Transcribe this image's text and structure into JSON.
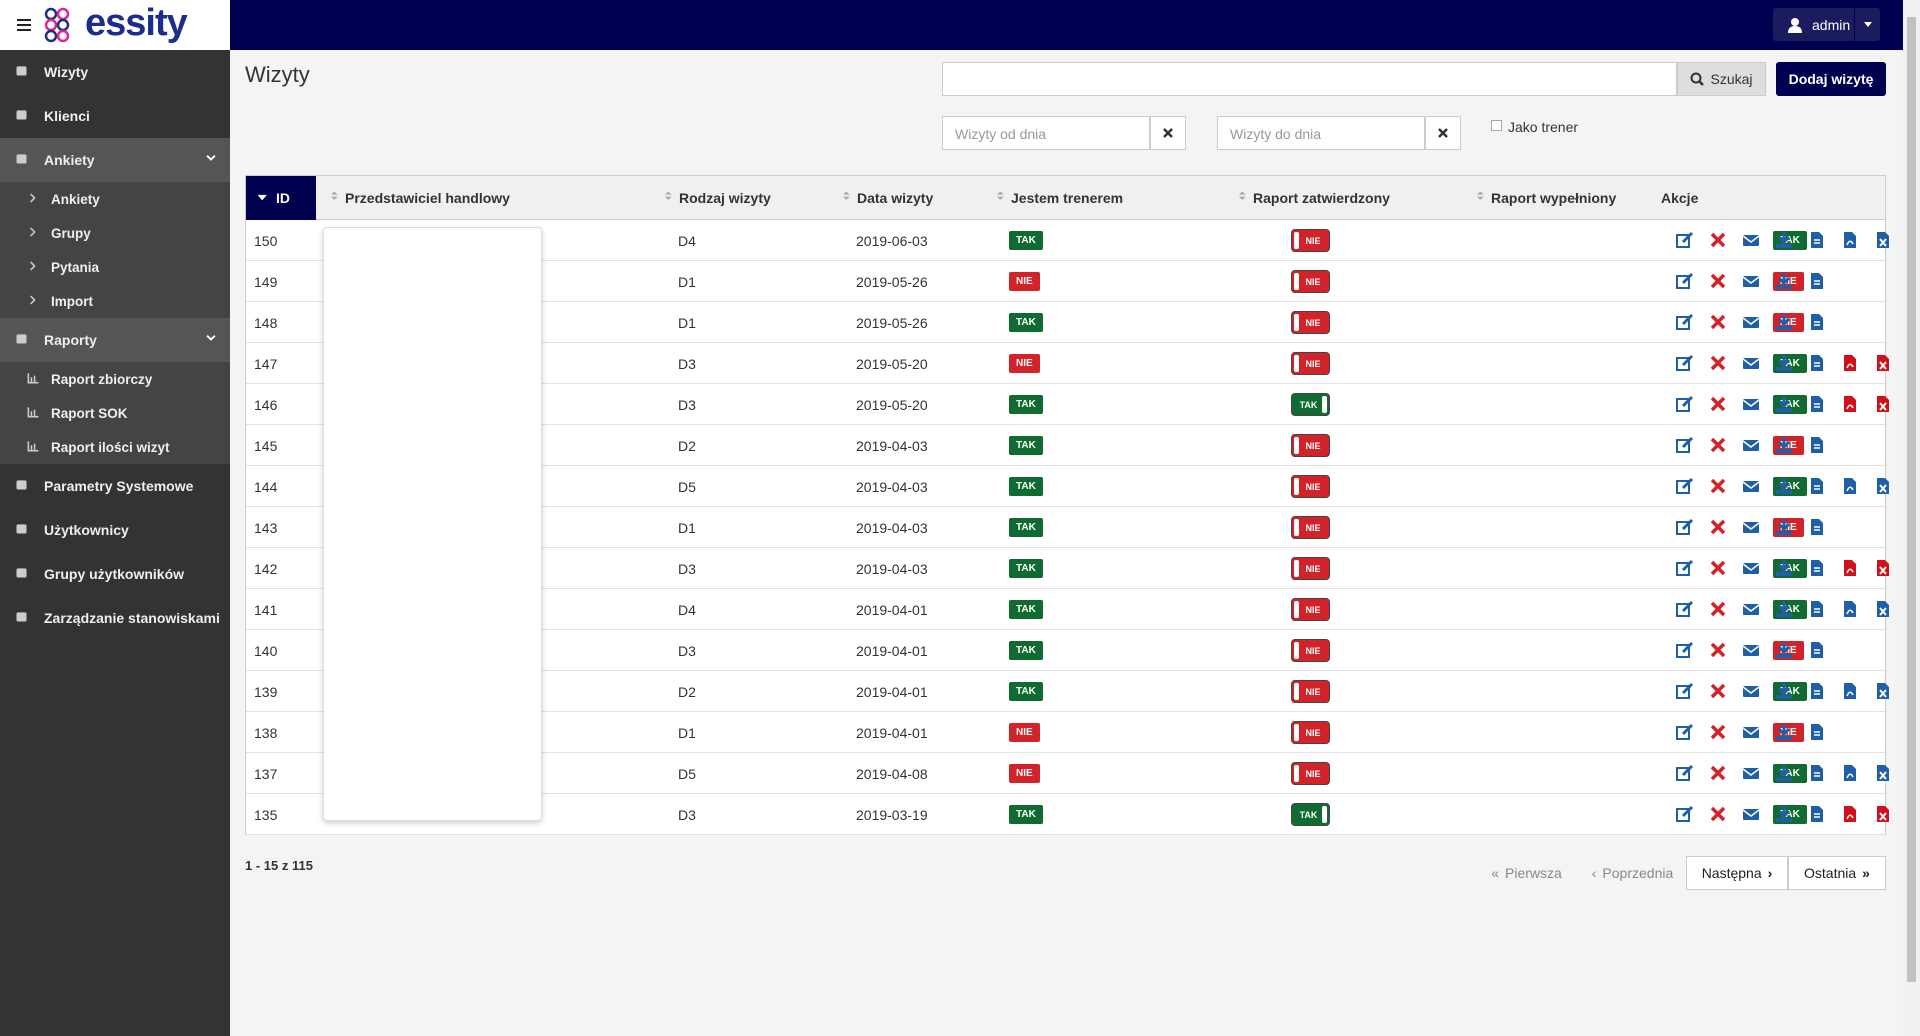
{
  "brand": "essity",
  "user": "admin",
  "sidebar": [
    {
      "label": "Wizyty"
    },
    {
      "label": "Klienci"
    },
    {
      "label": "Ankiety",
      "children": [
        "Ankiety",
        "Grupy",
        "Pytania",
        "Import"
      ]
    },
    {
      "label": "Raporty",
      "children": [
        "Raport zbiorczy",
        "Raport SOK",
        "Raport ilości wizyt"
      ]
    },
    {
      "label": "Parametry Systemowe"
    },
    {
      "label": "Użytkownicy"
    },
    {
      "label": "Grupy użytkowników"
    },
    {
      "label": "Zarządzanie stanowiskami"
    }
  ],
  "page_title": "Wizyty",
  "search": {
    "button": "Szukaj",
    "add_button": "Dodaj wizytę"
  },
  "filters": {
    "from_placeholder": "Wizyty od dnia",
    "to_placeholder": "Wizyty do dnia",
    "trainer_checkbox": "Jako trener"
  },
  "table": {
    "columns": [
      "ID",
      "Przedstawiciel handlowy",
      "Rodzaj wizyty",
      "Data wizyty",
      "Jestem trenerem",
      "Raport zatwierdzony",
      "Raport wypełniony",
      "Akcje"
    ],
    "rows": [
      {
        "id": 150,
        "type": "D4",
        "date": "2019-06-03",
        "trainer": "TAK",
        "approved": "NIE",
        "filled": "TAK",
        "report_icons_color": "#1f5fa8"
      },
      {
        "id": 149,
        "type": "D1",
        "date": "2019-05-26",
        "trainer": "NIE",
        "approved": "NIE",
        "filled": "NIE",
        "report_icons_color": null
      },
      {
        "id": 148,
        "type": "D1",
        "date": "2019-05-26",
        "trainer": "TAK",
        "approved": "NIE",
        "filled": "NIE",
        "report_icons_color": null
      },
      {
        "id": 147,
        "type": "D3",
        "date": "2019-05-20",
        "trainer": "NIE",
        "approved": "NIE",
        "filled": "TAK",
        "report_icons_color": "#d0111b"
      },
      {
        "id": 146,
        "type": "D3",
        "date": "2019-05-20",
        "trainer": "TAK",
        "approved": "TAK",
        "filled": "TAK",
        "report_icons_color": "#d0111b"
      },
      {
        "id": 145,
        "type": "D2",
        "date": "2019-04-03",
        "trainer": "TAK",
        "approved": "NIE",
        "filled": "NIE",
        "report_icons_color": null
      },
      {
        "id": 144,
        "type": "D5",
        "date": "2019-04-03",
        "trainer": "TAK",
        "approved": "NIE",
        "filled": "TAK",
        "report_icons_color": "#1f5fa8"
      },
      {
        "id": 143,
        "type": "D1",
        "date": "2019-04-03",
        "trainer": "TAK",
        "approved": "NIE",
        "filled": "NIE",
        "report_icons_color": null
      },
      {
        "id": 142,
        "type": "D3",
        "date": "2019-04-03",
        "trainer": "TAK",
        "approved": "NIE",
        "filled": "TAK",
        "report_icons_color": "#d0111b"
      },
      {
        "id": 141,
        "type": "D4",
        "date": "2019-04-01",
        "trainer": "TAK",
        "approved": "NIE",
        "filled": "TAK",
        "report_icons_color": "#1f5fa8"
      },
      {
        "id": 140,
        "type": "D3",
        "date": "2019-04-01",
        "trainer": "TAK",
        "approved": "NIE",
        "filled": "NIE",
        "report_icons_color": null
      },
      {
        "id": 139,
        "type": "D2",
        "date": "2019-04-01",
        "trainer": "TAK",
        "approved": "NIE",
        "filled": "TAK",
        "report_icons_color": "#1f5fa8"
      },
      {
        "id": 138,
        "type": "D1",
        "date": "2019-04-01",
        "trainer": "NIE",
        "approved": "NIE",
        "filled": "NIE",
        "report_icons_color": null
      },
      {
        "id": 137,
        "type": "D5",
        "date": "2019-04-08",
        "trainer": "NIE",
        "approved": "NIE",
        "filled": "TAK",
        "report_icons_color": "#1f5fa8"
      },
      {
        "id": 135,
        "type": "D3",
        "date": "2019-03-19",
        "trainer": "TAK",
        "approved": "TAK",
        "filled": "TAK",
        "report_icons_color": "#d0111b"
      }
    ]
  },
  "pagination": {
    "summary": "1 - 15 z 115",
    "first": "Pierwsza",
    "prev": "Poprzednia",
    "next": "Następna",
    "last": "Ostatnia"
  }
}
